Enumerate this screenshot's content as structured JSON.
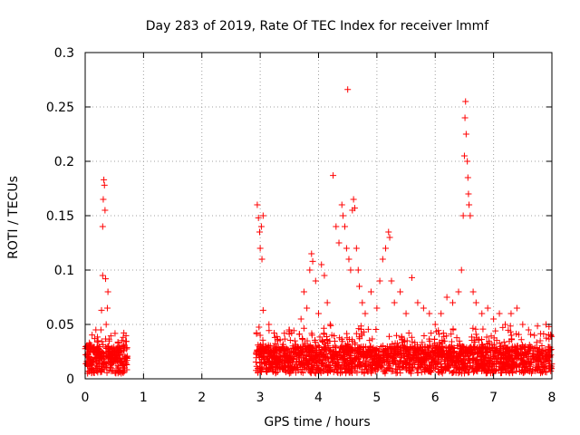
{
  "chart_data": {
    "type": "scatter",
    "title": "Day 283 of 2019, Rate Of TEC Index for receiver lmmf",
    "xlabel": "GPS time / hours",
    "ylabel": "ROTI / TECUs",
    "xlim": [
      0,
      8
    ],
    "ylim": [
      0,
      0.3
    ],
    "x_ticks": [
      0,
      1,
      2,
      3,
      4,
      5,
      6,
      7,
      8
    ],
    "x_tick_labels": [
      "0",
      "1",
      "2",
      "3",
      "4",
      "5",
      "6",
      "7",
      "8"
    ],
    "y_ticks": [
      0,
      0.05,
      0.1,
      0.15,
      0.2,
      0.25,
      0.3
    ],
    "y_tick_labels": [
      "0",
      "0.05",
      "0.1",
      "0.15",
      "0.2",
      "0.25",
      "0.3"
    ],
    "grid": true,
    "marker": "+",
    "color": "#ff0000",
    "series": [
      {
        "name": "ROTI",
        "points": [
          [
            0.02,
            0.014
          ],
          [
            0.05,
            0.022
          ],
          [
            0.08,
            0.012
          ],
          [
            0.1,
            0.03
          ],
          [
            0.12,
            0.018
          ],
          [
            0.15,
            0.025
          ],
          [
            0.18,
            0.01
          ],
          [
            0.2,
            0.02
          ],
          [
            0.22,
            0.035
          ],
          [
            0.25,
            0.016
          ],
          [
            0.27,
            0.045
          ],
          [
            0.28,
            0.063
          ],
          [
            0.3,
            0.095
          ],
          [
            0.3,
            0.14
          ],
          [
            0.31,
            0.165
          ],
          [
            0.32,
            0.183
          ],
          [
            0.33,
            0.178
          ],
          [
            0.34,
            0.155
          ],
          [
            0.35,
            0.092
          ],
          [
            0.36,
            0.05
          ],
          [
            0.38,
            0.065
          ],
          [
            0.39,
            0.08
          ],
          [
            0.4,
            0.03
          ],
          [
            0.42,
            0.02
          ],
          [
            0.45,
            0.015
          ],
          [
            0.48,
            0.025
          ],
          [
            0.5,
            0.018
          ],
          [
            0.53,
            0.028
          ],
          [
            0.56,
            0.012
          ],
          [
            0.6,
            0.022
          ],
          [
            0.63,
            0.016
          ],
          [
            0.66,
            0.026
          ],
          [
            0.7,
            0.014
          ],
          [
            2.95,
            0.16
          ],
          [
            2.97,
            0.148
          ],
          [
            2.99,
            0.135
          ],
          [
            3.0,
            0.12
          ],
          [
            3.02,
            0.14
          ],
          [
            3.03,
            0.11
          ],
          [
            3.05,
            0.15
          ],
          [
            3.0,
            0.04
          ],
          [
            3.05,
            0.063
          ],
          [
            3.1,
            0.03
          ],
          [
            3.15,
            0.05
          ],
          [
            3.2,
            0.02
          ],
          [
            3.3,
            0.035
          ],
          [
            3.4,
            0.025
          ],
          [
            3.5,
            0.045
          ],
          [
            3.6,
            0.03
          ],
          [
            3.7,
            0.055
          ],
          [
            3.75,
            0.08
          ],
          [
            3.8,
            0.065
          ],
          [
            3.85,
            0.1
          ],
          [
            3.88,
            0.115
          ],
          [
            3.9,
            0.108
          ],
          [
            3.95,
            0.09
          ],
          [
            4.0,
            0.06
          ],
          [
            4.05,
            0.105
          ],
          [
            4.1,
            0.095
          ],
          [
            4.15,
            0.07
          ],
          [
            4.2,
            0.05
          ],
          [
            4.25,
            0.187
          ],
          [
            4.3,
            0.14
          ],
          [
            4.35,
            0.125
          ],
          [
            4.4,
            0.16
          ],
          [
            4.42,
            0.15
          ],
          [
            4.45,
            0.14
          ],
          [
            4.48,
            0.12
          ],
          [
            4.5,
            0.266
          ],
          [
            4.52,
            0.11
          ],
          [
            4.55,
            0.1
          ],
          [
            4.58,
            0.155
          ],
          [
            4.6,
            0.165
          ],
          [
            4.62,
            0.157
          ],
          [
            4.65,
            0.12
          ],
          [
            4.68,
            0.1
          ],
          [
            4.7,
            0.085
          ],
          [
            4.75,
            0.07
          ],
          [
            4.8,
            0.06
          ],
          [
            4.9,
            0.08
          ],
          [
            5.0,
            0.065
          ],
          [
            5.05,
            0.09
          ],
          [
            5.1,
            0.11
          ],
          [
            5.15,
            0.12
          ],
          [
            5.2,
            0.135
          ],
          [
            5.22,
            0.13
          ],
          [
            5.25,
            0.09
          ],
          [
            5.3,
            0.07
          ],
          [
            5.4,
            0.08
          ],
          [
            5.5,
            0.06
          ],
          [
            5.6,
            0.093
          ],
          [
            5.7,
            0.07
          ],
          [
            5.8,
            0.065
          ],
          [
            5.9,
            0.06
          ],
          [
            6.0,
            0.05
          ],
          [
            6.1,
            0.06
          ],
          [
            6.2,
            0.075
          ],
          [
            6.3,
            0.07
          ],
          [
            6.4,
            0.08
          ],
          [
            6.45,
            0.1
          ],
          [
            6.48,
            0.15
          ],
          [
            6.5,
            0.205
          ],
          [
            6.51,
            0.24
          ],
          [
            6.52,
            0.255
          ],
          [
            6.53,
            0.225
          ],
          [
            6.55,
            0.2
          ],
          [
            6.56,
            0.185
          ],
          [
            6.57,
            0.17
          ],
          [
            6.58,
            0.16
          ],
          [
            6.6,
            0.15
          ],
          [
            6.65,
            0.08
          ],
          [
            6.7,
            0.07
          ],
          [
            6.8,
            0.06
          ],
          [
            6.9,
            0.065
          ],
          [
            7.0,
            0.055
          ],
          [
            7.1,
            0.06
          ],
          [
            7.2,
            0.05
          ],
          [
            7.3,
            0.06
          ],
          [
            7.4,
            0.065
          ],
          [
            7.5,
            0.05
          ],
          [
            7.6,
            0.045
          ],
          [
            7.7,
            0.04
          ],
          [
            7.8,
            0.035
          ],
          [
            7.9,
            0.05
          ],
          [
            7.95,
            0.048
          ]
        ]
      }
    ],
    "dense_background": {
      "ranges": [
        [
          0.0,
          0.72
        ],
        [
          2.92,
          8.0
        ]
      ],
      "y_base": [
        0.005,
        0.03
      ],
      "y_upper_typical": 0.05
    }
  }
}
